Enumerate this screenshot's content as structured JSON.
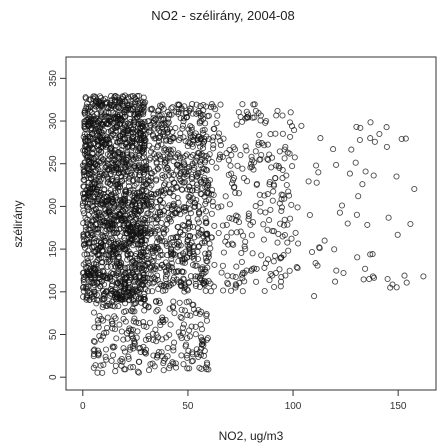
{
  "chart_data": {
    "type": "scatter",
    "title": "NO2 - szélirány, 2004-08",
    "xlabel": "NO2, ug/m3",
    "ylabel": "szélirány",
    "xlim": [
      -8,
      168
    ],
    "ylim": [
      -15,
      375
    ],
    "xticks": [
      0,
      50,
      100,
      150
    ],
    "yticks": [
      0,
      50,
      100,
      150,
      200,
      250,
      300,
      350
    ],
    "grid": false,
    "marker": "open-circle",
    "marker_color": "#111111",
    "point_clouds": [
      {
        "x_range": [
          0,
          30
        ],
        "y_range": [
          90,
          330
        ],
        "density": "very-high"
      },
      {
        "x_range": [
          30,
          60
        ],
        "y_range": [
          100,
          320
        ],
        "density": "high"
      },
      {
        "x_range": [
          60,
          100
        ],
        "y_range": [
          100,
          320
        ],
        "density": "medium"
      },
      {
        "x_range": [
          100,
          160
        ],
        "y_range": [
          100,
          300
        ],
        "density": "sparse"
      },
      {
        "x_range": [
          5,
          60
        ],
        "y_range": [
          5,
          90
        ],
        "density": "medium"
      }
    ],
    "notable_points": [
      {
        "x": 162,
        "y": 118
      },
      {
        "x": 153,
        "y": 119
      },
      {
        "x": 145,
        "y": 115
      },
      {
        "x": 138,
        "y": 118
      },
      {
        "x": 132,
        "y": 292
      },
      {
        "x": 131,
        "y": 212
      },
      {
        "x": 133,
        "y": 226
      },
      {
        "x": 126,
        "y": 180
      },
      {
        "x": 124,
        "y": 122
      },
      {
        "x": 120,
        "y": 112
      },
      {
        "x": 115,
        "y": 160
      },
      {
        "x": 113,
        "y": 280
      },
      {
        "x": 112,
        "y": 240
      },
      {
        "x": 110,
        "y": 95
      },
      {
        "x": 108,
        "y": 190
      }
    ]
  }
}
